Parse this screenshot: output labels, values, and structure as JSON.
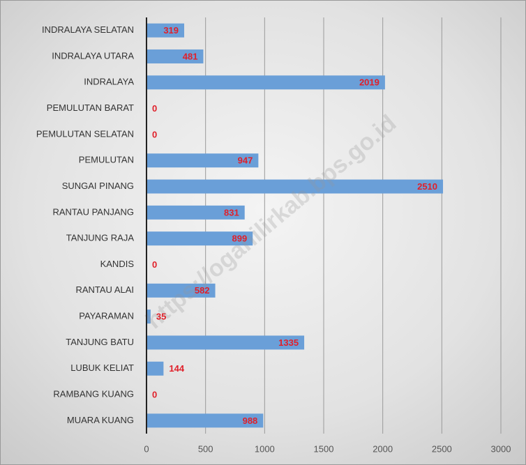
{
  "chart_data": {
    "type": "bar",
    "orientation": "horizontal",
    "categories": [
      "INDRALAYA SELATAN",
      "INDRALAYA UTARA",
      "INDRALAYA",
      "PEMULUTAN BARAT",
      "PEMULUTAN SELATAN",
      "PEMULUTAN",
      "SUNGAI PINANG",
      "RANTAU PANJANG",
      "TANJUNG RAJA",
      "KANDIS",
      "RANTAU ALAI",
      "PAYARAMAN",
      "TANJUNG BATU",
      "LUBUK KELIAT",
      "RAMBANG KUANG",
      "MUARA KUANG"
    ],
    "values": [
      319,
      481,
      2019,
      0,
      0,
      947,
      2510,
      831,
      899,
      0,
      582,
      35,
      1335,
      144,
      0,
      988
    ],
    "color": "#6a9fd8",
    "xlim": [
      0,
      3000
    ],
    "xticks": [
      0,
      500,
      1000,
      1500,
      2000,
      2500,
      3000
    ],
    "grid": true,
    "watermark": "https://oganilirkab.bps.go.id"
  }
}
